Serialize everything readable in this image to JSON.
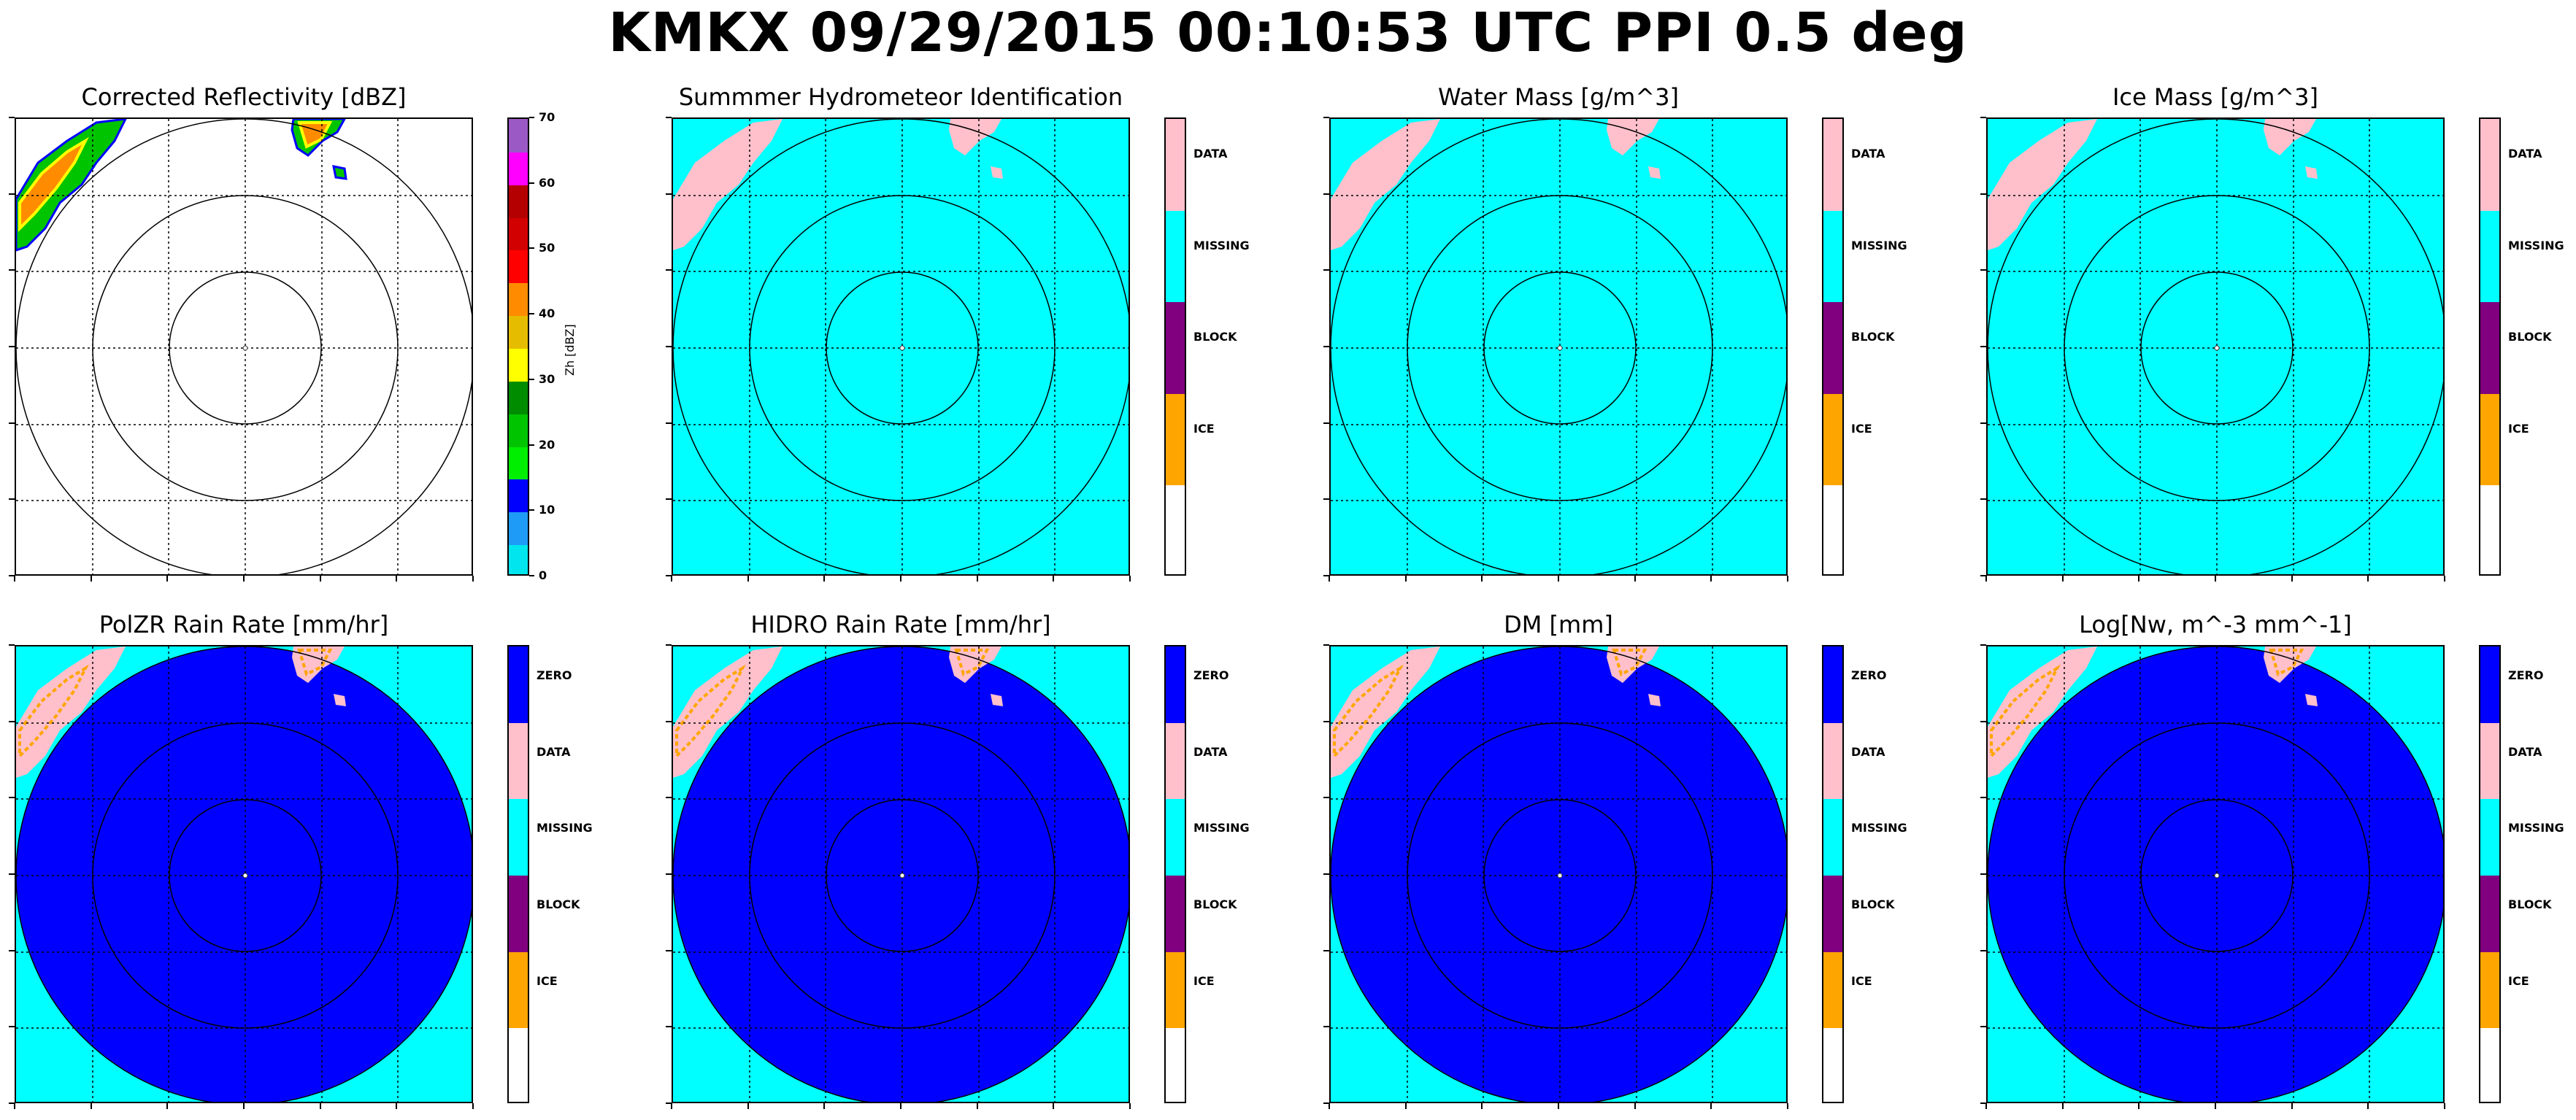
{
  "suptitle": "KMKX 09/29/2015 00:10:53 UTC PPI 0.5 deg",
  "colors": {
    "cyan": "#00ffff",
    "blue": "#0000ff",
    "pink": "#ffc0cb",
    "purple": "#800080",
    "orange": "#ffa500",
    "white": "#ffffff"
  },
  "panels": [
    {
      "title": "Corrected Reflectivity [dBZ]",
      "colorbar": "reflectivity"
    },
    {
      "title": "Summmer Hydrometeor Identification",
      "colorbar": "class4"
    },
    {
      "title": "Water Mass [g/m^3]",
      "colorbar": "class4"
    },
    {
      "title": "Ice Mass [g/m^3]",
      "colorbar": "class4"
    },
    {
      "title": "PolZR Rain Rate [mm/hr]",
      "colorbar": "class5"
    },
    {
      "title": "HIDRO Rain Rate [mm/hr]",
      "colorbar": "class5"
    },
    {
      "title": "DM [mm]",
      "colorbar": "class5"
    },
    {
      "title": "Log[Nw, m^-3 mm^-1]",
      "colorbar": "class5"
    }
  ],
  "reflectivity_colorbar": {
    "label": "Zh [dBZ]",
    "ticks": [
      "0",
      "10",
      "20",
      "30",
      "40",
      "50",
      "60",
      "70"
    ],
    "colors": [
      "#00e5ee",
      "#1e9af7",
      "#0000ff",
      "#00ee00",
      "#00c400",
      "#008c00",
      "#ffff00",
      "#e6bc00",
      "#ff8c00",
      "#ff0000",
      "#d20000",
      "#b40000",
      "#ff00ff",
      "#9b59c5"
    ]
  },
  "class4_colorbar": {
    "labels": [
      "DATA",
      "MISSING",
      "BLOCK",
      "ICE"
    ],
    "colors": [
      "#ffc0cb",
      "#00ffff",
      "#800080",
      "#ffa500",
      "#ffffff"
    ]
  },
  "class5_colorbar": {
    "labels": [
      "ZERO",
      "DATA",
      "MISSING",
      "BLOCK",
      "ICE"
    ],
    "colors": [
      "#0000ff",
      "#ffc0cb",
      "#00ffff",
      "#800080",
      "#ffa500",
      "#ffffff"
    ]
  },
  "chart_data": {
    "type": "heatmap",
    "title": "KMKX 09/29/2015 00:10:53 UTC PPI 0.5 deg",
    "range_rings": 3,
    "grid": true,
    "panels": [
      {
        "title": "Corrected Reflectivity [dBZ]",
        "colorbar_label": "Zh [dBZ]",
        "colorbar_ticks": [
          0,
          10,
          20,
          30,
          40,
          50,
          60,
          70
        ]
      },
      {
        "title": "Summmer Hydrometeor Identification",
        "categories": [
          "DATA",
          "MISSING",
          "BLOCK",
          "ICE"
        ]
      },
      {
        "title": "Water Mass [g/m^3]",
        "categories": [
          "DATA",
          "MISSING",
          "BLOCK",
          "ICE"
        ]
      },
      {
        "title": "Ice Mass [g/m^3]",
        "categories": [
          "DATA",
          "MISSING",
          "BLOCK",
          "ICE"
        ]
      },
      {
        "title": "PolZR Rain Rate [mm/hr]",
        "categories": [
          "ZERO",
          "DATA",
          "MISSING",
          "BLOCK",
          "ICE"
        ]
      },
      {
        "title": "HIDRO Rain Rate [mm/hr]",
        "categories": [
          "ZERO",
          "DATA",
          "MISSING",
          "BLOCK",
          "ICE"
        ]
      },
      {
        "title": "DM [mm]",
        "categories": [
          "ZERO",
          "DATA",
          "MISSING",
          "BLOCK",
          "ICE"
        ]
      },
      {
        "title": "Log[Nw, m^-3 mm^-1]",
        "categories": [
          "ZERO",
          "DATA",
          "MISSING",
          "BLOCK",
          "ICE"
        ]
      }
    ]
  }
}
